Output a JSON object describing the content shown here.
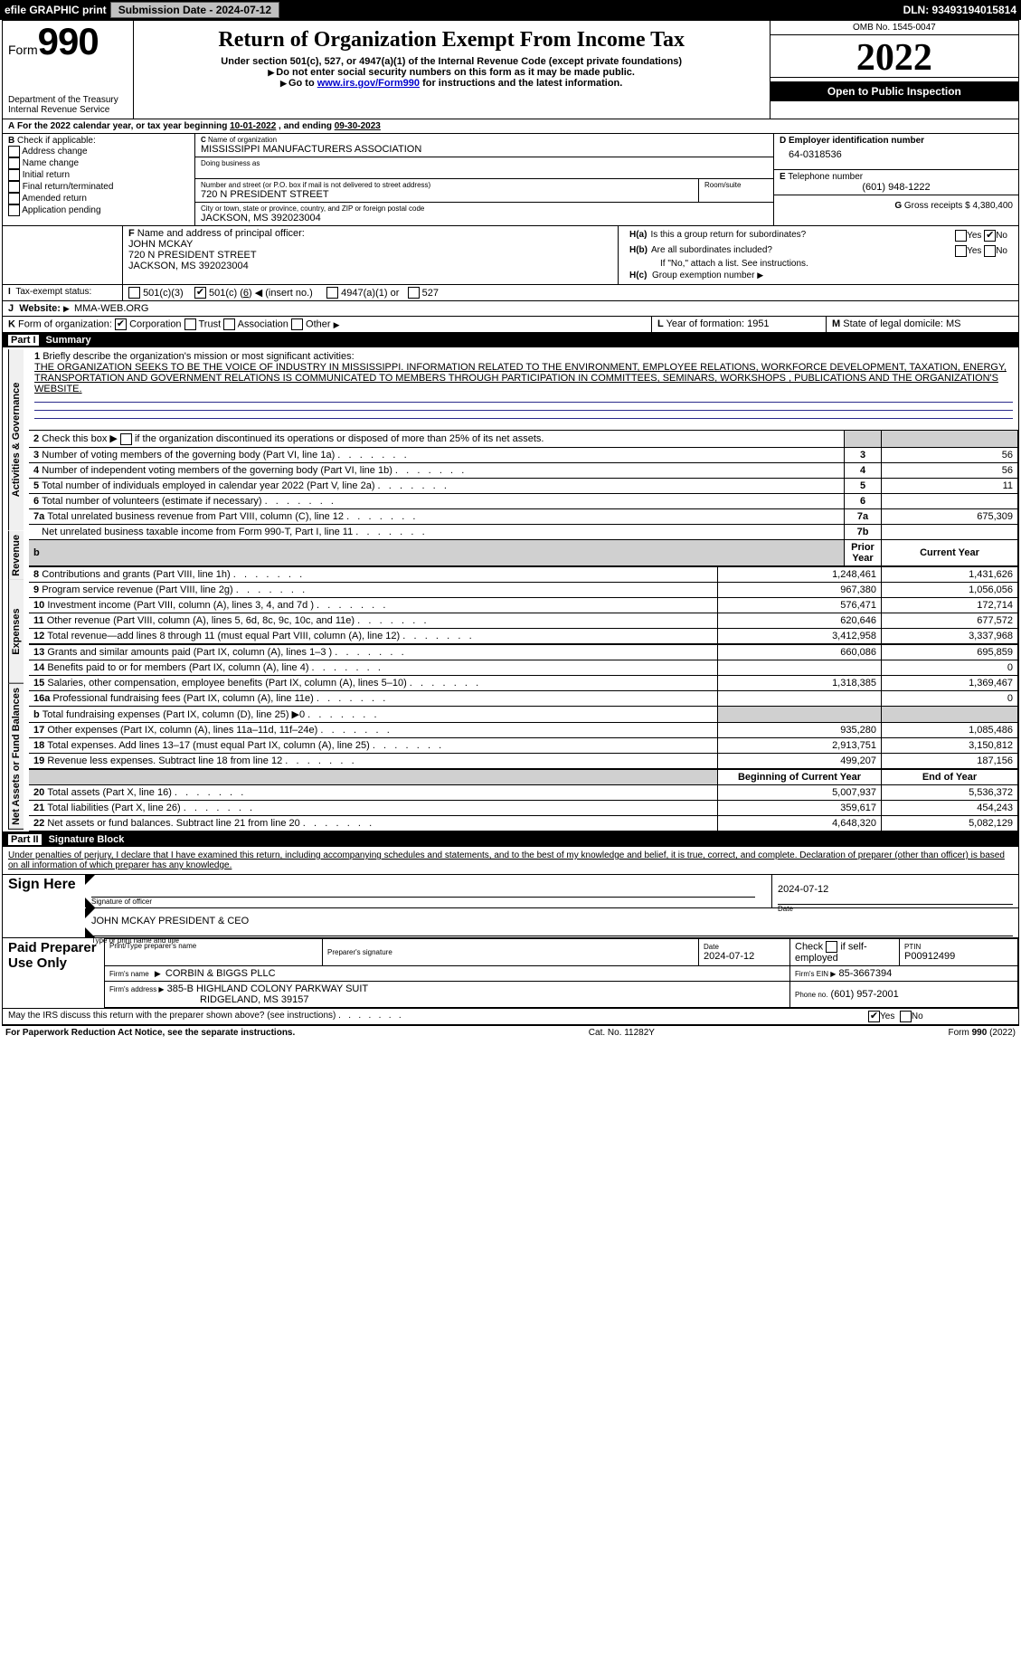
{
  "topbar": {
    "efile": "efile GRAPHIC print",
    "submission_btn": "Submission Date - 2024-07-12",
    "dln": "DLN: 93493194015814"
  },
  "header": {
    "form_word": "Form",
    "form_num": "990",
    "title": "Return of Organization Exempt From Income Tax",
    "sub1": "Under section 501(c), 527, or 4947(a)(1) of the Internal Revenue Code (except private foundations)",
    "sub2": "Do not enter social security numbers on this form as it may be made public.",
    "sub3_pre": "Go to ",
    "sub3_link": "www.irs.gov/Form990",
    "sub3_post": " for instructions and the latest information.",
    "omb": "OMB No. 1545-0047",
    "year": "2022",
    "badge": "Open to Public Inspection",
    "dept": "Department of the Treasury",
    "irs": "Internal Revenue Service"
  },
  "A": {
    "text_pre": "For the 2022 calendar year, or tax year beginning ",
    "begin": "10-01-2022",
    "mid": " , and ending ",
    "end": "09-30-2023"
  },
  "B": {
    "hdr": "Check if applicable:",
    "items": [
      "Address change",
      "Name change",
      "Initial return",
      "Final return/terminated",
      "Amended return",
      "Application pending"
    ]
  },
  "C": {
    "hdr": "Name of organization",
    "name": "MISSISSIPPI MANUFACTURERS ASSOCIATION",
    "dba_hdr": "Doing business as",
    "street_hdr": "Number and street (or P.O. box if mail is not delivered to street address)",
    "room_hdr": "Room/suite",
    "street": "720 N PRESIDENT STREET",
    "city_hdr": "City or town, state or province, country, and ZIP or foreign postal code",
    "city": "JACKSON, MS  392023004"
  },
  "D": {
    "hdr": "Employer identification number",
    "val": "64-0318536"
  },
  "E": {
    "hdr": "Telephone number",
    "val": "(601) 948-1222"
  },
  "G": {
    "hdr": "Gross receipts $",
    "val": "4,380,400"
  },
  "F": {
    "hdr": "Name and address of principal officer:",
    "name": "JOHN MCKAY",
    "addr1": "720 N PRESIDENT STREET",
    "addr2": "JACKSON, MS  392023004"
  },
  "H": {
    "a": "Is this a group return for subordinates?",
    "b": "Are all subordinates included?",
    "b_note": "If \"No,\" attach a list. See instructions.",
    "c": "Group exemption number",
    "yes": "Yes",
    "no": "No"
  },
  "I": {
    "hdr": "Tax-exempt status:",
    "c3": "501(c)(3)",
    "cN_pre": "501(c) (",
    "cN_val": "6",
    "cN_post": ") ◀ (insert no.)",
    "a1": "4947(a)(1) or",
    "s527": "527"
  },
  "J": {
    "hdr": "Website:",
    "val": "MMA-WEB.ORG"
  },
  "K": {
    "hdr": "Form of organization:",
    "corp": "Corporation",
    "trust": "Trust",
    "assoc": "Association",
    "other": "Other"
  },
  "L": {
    "hdr": "Year of formation:",
    "val": "1951"
  },
  "M": {
    "hdr": "State of legal domicile:",
    "val": "MS"
  },
  "parts": {
    "p1": "Part I",
    "p1t": "Summary",
    "p2": "Part II",
    "p2t": "Signature Block"
  },
  "tabs": {
    "ag": "Activities & Governance",
    "rev": "Revenue",
    "exp": "Expenses",
    "na": "Net Assets or Fund Balances"
  },
  "mission": {
    "q": "Briefly describe the organization's mission or most significant activities:",
    "text": "THE ORGANIZATION SEEKS TO BE THE VOICE OF INDUSTRY IN MISSISSIPPI. INFORMATION RELATED TO THE ENVIRONMENT, EMPLOYEE RELATIONS, WORKFORCE DEVELOPMENT, TAXATION, ENERGY, TRANSPORTATION AND GOVERNMENT RELATIONS IS COMMUNICATED TO MEMBERS THROUGH PARTICIPATION IN COMMITTEES, SEMINARS, WORKSHOPS , PUBLICATIONS AND THE ORGANIZATION'S WEBSITE."
  },
  "ag_lines": {
    "l2": "Check this box ▶",
    "l2b": "if the organization discontinued its operations or disposed of more than 25% of its net assets.",
    "l3": "Number of voting members of the governing body (Part VI, line 1a)",
    "l4": "Number of independent voting members of the governing body (Part VI, line 1b)",
    "l5": "Total number of individuals employed in calendar year 2022 (Part V, line 2a)",
    "l6": "Total number of volunteers (estimate if necessary)",
    "l7a": "Total unrelated business revenue from Part VIII, column (C), line 12",
    "l7b": "Net unrelated business taxable income from Form 990-T, Part I, line 11",
    "v3": "56",
    "v4": "56",
    "v5": "11",
    "v6": "",
    "v7a": "675,309",
    "v7b": ""
  },
  "twocol": {
    "prior": "Prior Year",
    "current": "Current Year",
    "boy": "Beginning of Current Year",
    "eoy": "End of Year"
  },
  "rev": [
    {
      "n": "8",
      "t": "Contributions and grants (Part VIII, line 1h)",
      "p": "1,248,461",
      "c": "1,431,626"
    },
    {
      "n": "9",
      "t": "Program service revenue (Part VIII, line 2g)",
      "p": "967,380",
      "c": "1,056,056"
    },
    {
      "n": "10",
      "t": "Investment income (Part VIII, column (A), lines 3, 4, and 7d )",
      "p": "576,471",
      "c": "172,714"
    },
    {
      "n": "11",
      "t": "Other revenue (Part VIII, column (A), lines 5, 6d, 8c, 9c, 10c, and 11e)",
      "p": "620,646",
      "c": "677,572"
    },
    {
      "n": "12",
      "t": "Total revenue—add lines 8 through 11 (must equal Part VIII, column (A), line 12)",
      "p": "3,412,958",
      "c": "3,337,968"
    }
  ],
  "exp": [
    {
      "n": "13",
      "t": "Grants and similar amounts paid (Part IX, column (A), lines 1–3 )",
      "p": "660,086",
      "c": "695,859"
    },
    {
      "n": "14",
      "t": "Benefits paid to or for members (Part IX, column (A), line 4)",
      "p": "",
      "c": "0"
    },
    {
      "n": "15",
      "t": "Salaries, other compensation, employee benefits (Part IX, column (A), lines 5–10)",
      "p": "1,318,385",
      "c": "1,369,467"
    },
    {
      "n": "16a",
      "t": "Professional fundraising fees (Part IX, column (A), line 11e)",
      "p": "",
      "c": "0"
    },
    {
      "n": "b",
      "t": "Total fundraising expenses (Part IX, column (D), line 25) ▶0",
      "p": "shade",
      "c": "shade"
    },
    {
      "n": "17",
      "t": "Other expenses (Part IX, column (A), lines 11a–11d, 11f–24e)",
      "p": "935,280",
      "c": "1,085,486"
    },
    {
      "n": "18",
      "t": "Total expenses. Add lines 13–17 (must equal Part IX, column (A), line 25)",
      "p": "2,913,751",
      "c": "3,150,812"
    },
    {
      "n": "19",
      "t": "Revenue less expenses. Subtract line 18 from line 12",
      "p": "499,207",
      "c": "187,156"
    }
  ],
  "na": [
    {
      "n": "20",
      "t": "Total assets (Part X, line 16)",
      "p": "5,007,937",
      "c": "5,536,372"
    },
    {
      "n": "21",
      "t": "Total liabilities (Part X, line 26)",
      "p": "359,617",
      "c": "454,243"
    },
    {
      "n": "22",
      "t": "Net assets or fund balances. Subtract line 21 from line 20",
      "p": "4,648,320",
      "c": "5,082,129"
    }
  ],
  "sig": {
    "penalty": "Under penalties of perjury, I declare that I have examined this return, including accompanying schedules and statements, and to the best of my knowledge and belief, it is true, correct, and complete. Declaration of preparer (other than officer) is based on all information of which preparer has any knowledge.",
    "sign_here": "Sign Here",
    "sig_officer": "Signature of officer",
    "date": "Date",
    "date_val": "2024-07-12",
    "typed": "JOHN MCKAY PRESIDENT & CEO",
    "typed_hdr": "Type or print name and title",
    "paid": "Paid Preparer Use Only",
    "prep_name_hdr": "Print/Type preparer's name",
    "prep_sig_hdr": "Preparer's signature",
    "prep_date_hdr": "Date",
    "prep_date": "2024-07-12",
    "check_if": "Check",
    "self_emp": "if self-employed",
    "ptin_hdr": "PTIN",
    "ptin": "P00912499",
    "firm_name_hdr": "Firm's name",
    "firm_name": "CORBIN & BIGGS PLLC",
    "firm_ein_hdr": "Firm's EIN ▶",
    "firm_ein": "85-3667394",
    "firm_addr_hdr": "Firm's address ▶",
    "firm_addr": "385-B HIGHLAND COLONY PARKWAY SUIT",
    "firm_city": "RIDGELAND, MS  39157",
    "firm_phone_hdr": "Phone no.",
    "firm_phone": "(601) 957-2001",
    "discuss": "May the IRS discuss this return with the preparer shown above? (see instructions)"
  },
  "footer": {
    "pra": "For Paperwork Reduction Act Notice, see the separate instructions.",
    "cat": "Cat. No. 11282Y",
    "form": "Form 990 (2022)"
  },
  "labels": {
    "A": "A",
    "B": "B",
    "C": "C",
    "D": "D",
    "E": "E",
    "F": "F",
    "G": "G",
    "I": "I",
    "J": "J",
    "K": "K",
    "L": "L",
    "M": "M"
  }
}
